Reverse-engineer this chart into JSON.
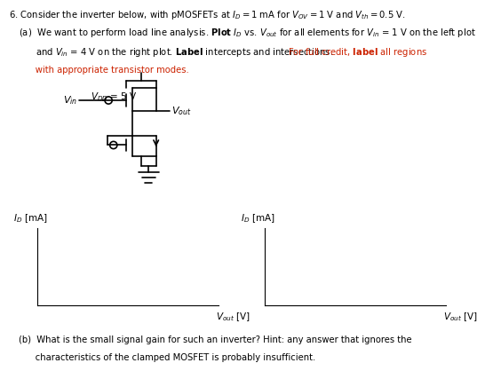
{
  "title": "6. Consider the inverter below, with pMOSFETs at $I_D = 1$ mA for $V_{OV} = 1$ V and $V_{th} = 0.5$ V.",
  "part_a_prefix": "(a)",
  "part_a_l1": "  We want to perform load line analysis. \\textbf{Plot} $I_D$ vs. $V_{out}$ for all elements for $V_{in}$ = 1 V on the left plot",
  "part_a_l2_black": "  and $V_{in}$ = 4 V on the right plot. \\textbf{Label} intercepts and intersections. ",
  "part_a_l2_red": "For full credit, \\textbf{label} all regions",
  "part_a_l3_red": "  with appropriate transistor modes.",
  "vdd": "$V_{DD}$ = 5 V",
  "vin": "$V_{in}$",
  "vout_ckt": "$V_{out}$",
  "ylabel": "$I_D$ [mA]",
  "xlabel": "$V_{out}$ [V]",
  "part_b_l1": "(b)  What is the small signal gain for such an inverter? Hint: any answer that ignores the",
  "part_b_l2": "      characteristics of the clamped MOSFET is probably insufficient.",
  "bg": "#ffffff",
  "fg": "#000000",
  "red": "#cc2200",
  "lw": 1.0,
  "fontsize_main": 7.2,
  "fontsize_ckt": 7.5
}
